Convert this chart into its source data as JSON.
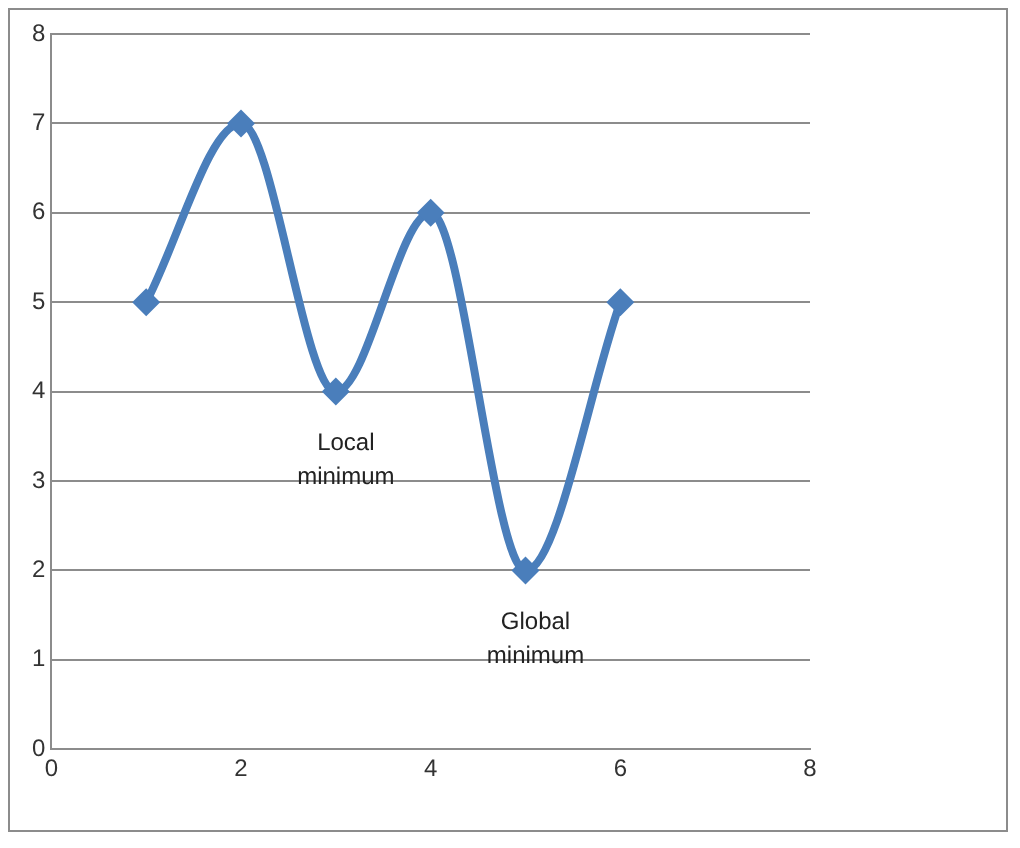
{
  "chart_data": {
    "type": "line",
    "x": [
      1,
      2,
      3,
      4,
      5,
      6
    ],
    "series": [
      {
        "color": "#4a7ebb",
        "values": [
          5,
          7,
          4,
          6,
          2,
          5
        ]
      }
    ],
    "xlim": [
      0,
      8
    ],
    "xticks": [
      0,
      2,
      4,
      6,
      8
    ],
    "ylim": [
      0,
      8
    ],
    "yticks": [
      0,
      1,
      2,
      3,
      4,
      5,
      6,
      7,
      8
    ],
    "grid": "y",
    "legend": false,
    "marker": "diamond",
    "line_style": "solid",
    "annotations": [
      {
        "text": "Local minimum",
        "x": 3,
        "y": 4
      },
      {
        "text": "Global minimum",
        "x": 5,
        "y": 2
      }
    ]
  }
}
